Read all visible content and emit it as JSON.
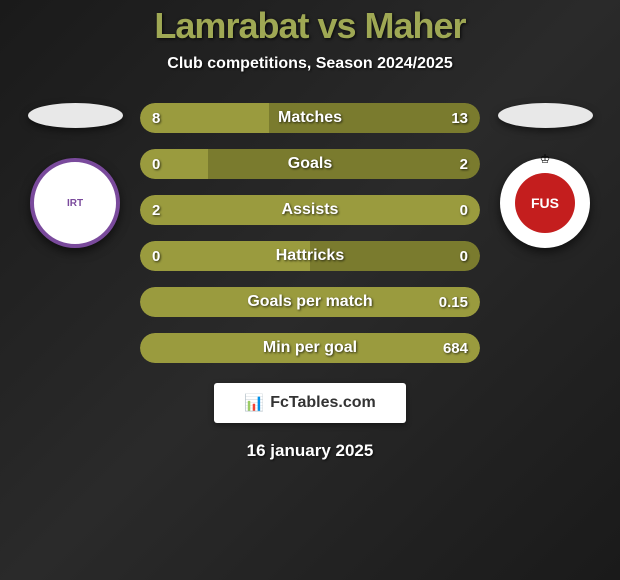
{
  "title": "Lamrabat vs Maher",
  "subtitle": "Club competitions, Season 2024/2025",
  "colors": {
    "title_color": "#9fa854",
    "bar_left": "#9a9b3e",
    "bar_right": "#7a7b2e",
    "text_white": "#ffffff",
    "badge_left_border": "#7a4a9c",
    "badge_right_bg": "#c41e1e"
  },
  "team_left": {
    "badge_text": "IRT"
  },
  "team_right": {
    "badge_text": "FUS"
  },
  "stats": [
    {
      "label": "Matches",
      "left_value": "8",
      "right_value": "13",
      "left_pct": 38,
      "show_right": true
    },
    {
      "label": "Goals",
      "left_value": "0",
      "right_value": "2",
      "left_pct": 20,
      "show_right": true
    },
    {
      "label": "Assists",
      "left_value": "2",
      "right_value": "0",
      "left_pct": 100,
      "show_right": false
    },
    {
      "label": "Hattricks",
      "left_value": "0",
      "right_value": "0",
      "left_pct": 50,
      "show_right": true
    },
    {
      "label": "Goals per match",
      "left_value": "",
      "right_value": "0.15",
      "left_pct": 0,
      "show_right": true
    },
    {
      "label": "Min per goal",
      "left_value": "",
      "right_value": "684",
      "left_pct": 0,
      "show_right": true
    }
  ],
  "footer": {
    "site": "FcTables.com"
  },
  "date": "16 january 2025"
}
